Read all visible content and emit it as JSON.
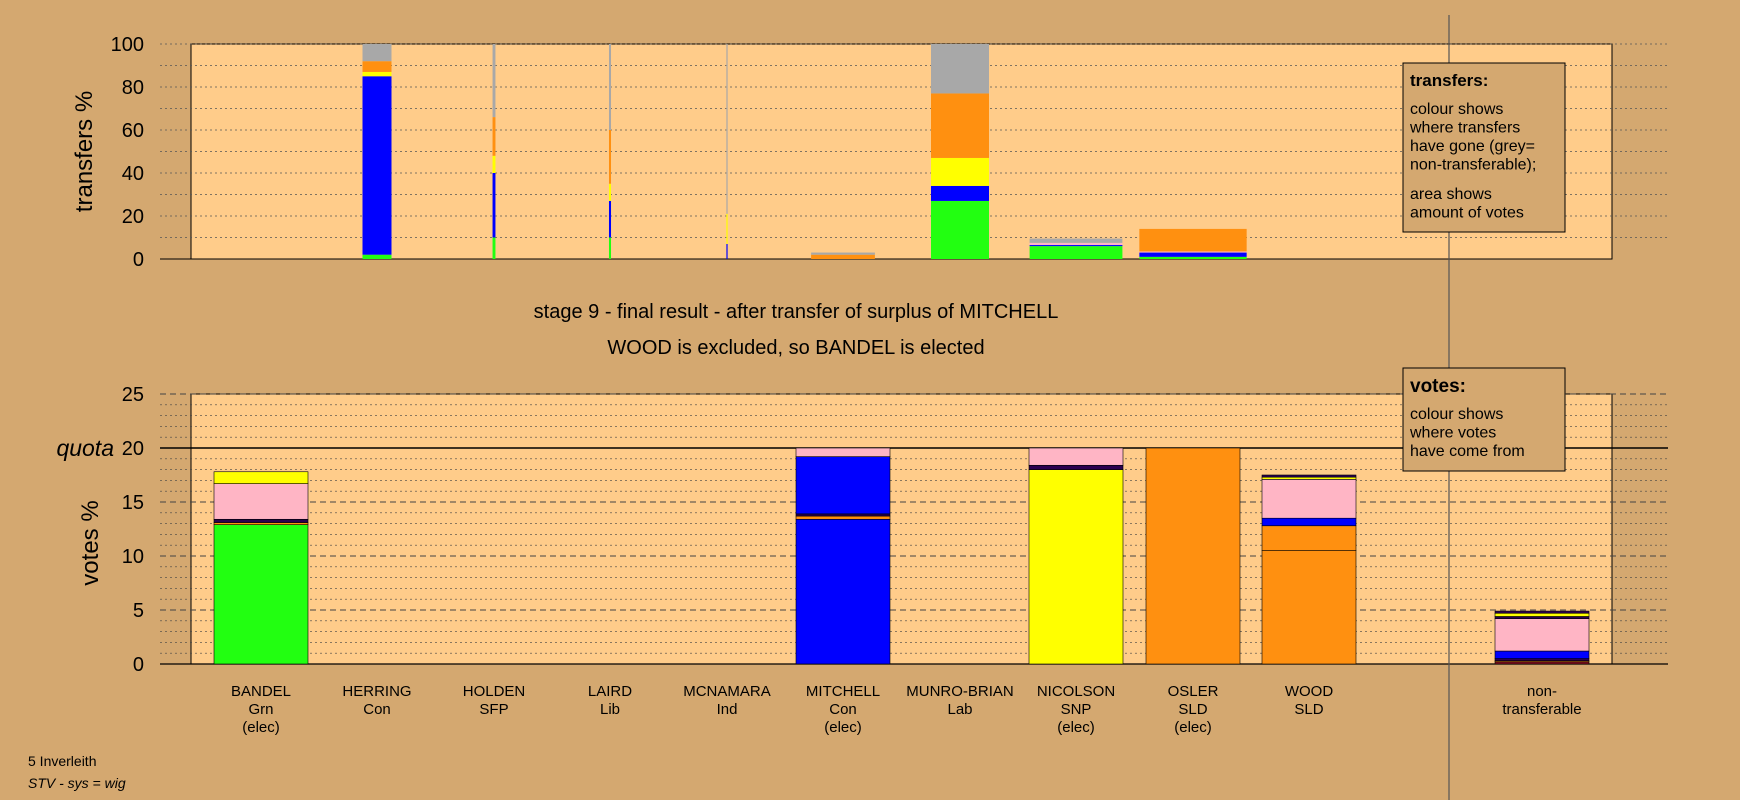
{
  "colors": {
    "Grn": "#22ff11",
    "Con": "#0000ff",
    "SFP": "#2a0050",
    "Lib": "#ff9010",
    "Ind": "#8a0f20",
    "Lab": "#ff0000",
    "SNP": "#ffff00",
    "SLD": "#ff9010",
    "other": "#ffb5c5",
    "non": "#a8a8a8",
    "plot_bg": "#ffcc8a",
    "page_bg": "#d4a870"
  },
  "chart_data": [
    {
      "type": "bar",
      "chart": "transfers",
      "ylabel": "transfers %",
      "ylim": [
        0,
        100
      ],
      "yticks": [
        0,
        20,
        40,
        60,
        80,
        100
      ],
      "grid": true,
      "note": "stacked transfer columns; column width shows amount of votes transferred",
      "columns": [
        {
          "candidate": "HERRING",
          "width": 1.0,
          "segments": [
            {
              "party": "Grn",
              "value": 2
            },
            {
              "party": "Con",
              "value": 83
            },
            {
              "party": "SNP",
              "value": 2
            },
            {
              "party": "SLD",
              "value": 5
            },
            {
              "party": "non",
              "value": 8
            }
          ]
        },
        {
          "candidate": "HOLDEN",
          "width": 0.1,
          "segments": [
            {
              "party": "Grn",
              "value": 10
            },
            {
              "party": "Con",
              "value": 30
            },
            {
              "party": "SNP",
              "value": 8
            },
            {
              "party": "SLD",
              "value": 18
            },
            {
              "party": "non",
              "value": 34
            }
          ]
        },
        {
          "candidate": "LAIRD",
          "width": 0.07,
          "segments": [
            {
              "party": "Grn",
              "value": 10
            },
            {
              "party": "Con",
              "value": 17
            },
            {
              "party": "SNP",
              "value": 8
            },
            {
              "party": "SLD",
              "value": 25
            },
            {
              "party": "non",
              "value": 40
            }
          ]
        },
        {
          "candidate": "MCNAMARA",
          "width": 0.04,
          "segments": [
            {
              "party": "Con",
              "value": 7
            },
            {
              "party": "SNP",
              "value": 14
            },
            {
              "party": "non",
              "value": 79
            }
          ]
        },
        {
          "candidate": "MITCHELL",
          "width": 2.2,
          "segments": [
            {
              "party": "SLD",
              "value": 2
            },
            {
              "party": "non",
              "value": 1
            }
          ]
        },
        {
          "candidate": "MUNRO-BRIAN",
          "width": 2.0,
          "segments": [
            {
              "party": "Grn",
              "value": 27
            },
            {
              "party": "Con",
              "value": 7
            },
            {
              "party": "SNP",
              "value": 13
            },
            {
              "party": "SLD",
              "value": 30
            },
            {
              "party": "non",
              "value": 23
            }
          ]
        },
        {
          "candidate": "NICOLSON",
          "width": 3.2,
          "segments": [
            {
              "party": "Grn",
              "value": 6
            },
            {
              "party": "Con",
              "value": 0.5
            },
            {
              "party": "other",
              "value": 1
            },
            {
              "party": "non",
              "value": 2
            }
          ]
        },
        {
          "candidate": "OSLER",
          "width": 3.7,
          "segments": [
            {
              "party": "Grn",
              "value": 1
            },
            {
              "party": "Con",
              "value": 2
            },
            {
              "party": "other",
              "value": 0.5
            },
            {
              "party": "SLD",
              "value": 10.5
            }
          ]
        }
      ]
    },
    {
      "type": "bar",
      "chart": "votes",
      "ylabel": "votes %",
      "ylim": [
        0,
        25
      ],
      "yticks": [
        0,
        5,
        10,
        15,
        20,
        25
      ],
      "quota": 20,
      "quota_label": "quota",
      "grid": true,
      "columns": [
        {
          "candidate": "BANDEL",
          "party": "Grn",
          "status": "(elec)",
          "segments": [
            {
              "party": "Grn",
              "value": 12.9
            },
            {
              "party": "Lib",
              "value": 0.2
            },
            {
              "party": "SFP",
              "value": 0.3
            },
            {
              "party": "other",
              "value": 3.3
            },
            {
              "party": "SNP",
              "value": 1.1
            }
          ]
        },
        {
          "candidate": "HERRING",
          "party": "Con",
          "status": "",
          "segments": []
        },
        {
          "candidate": "HOLDEN",
          "party": "SFP",
          "status": "",
          "segments": []
        },
        {
          "candidate": "LAIRD",
          "party": "Lib",
          "status": "",
          "segments": []
        },
        {
          "candidate": "MCNAMARA",
          "party": "Ind",
          "status": "",
          "segments": []
        },
        {
          "candidate": "MITCHELL",
          "party": "Con",
          "status": "(elec)",
          "segments": [
            {
              "party": "Con",
              "value": 13.4
            },
            {
              "party": "Lib",
              "value": 0.3
            },
            {
              "party": "SFP",
              "value": 0.2
            },
            {
              "party": "Con",
              "value": 5.3
            },
            {
              "party": "other",
              "value": 0.8
            }
          ]
        },
        {
          "candidate": "MUNRO-BRIAN",
          "party": "Lab",
          "status": "",
          "segments": []
        },
        {
          "candidate": "NICOLSON",
          "party": "SNP",
          "status": "(elec)",
          "segments": [
            {
              "party": "SNP",
              "value": 18.0
            },
            {
              "party": "SFP",
              "value": 0.4
            },
            {
              "party": "other",
              "value": 1.6
            }
          ]
        },
        {
          "candidate": "OSLER",
          "party": "SLD",
          "status": "(elec)",
          "segments": [
            {
              "party": "SLD",
              "value": 20.0
            }
          ]
        },
        {
          "candidate": "WOOD",
          "party": "SLD",
          "status": "",
          "segments": [
            {
              "party": "SLD",
              "value": 10.5
            },
            {
              "party": "SLD",
              "value": 2.3
            },
            {
              "party": "Con",
              "value": 0.7
            },
            {
              "party": "other",
              "value": 3.6
            },
            {
              "party": "SNP",
              "value": 0.2
            },
            {
              "party": "SFP",
              "value": 0.2
            }
          ]
        },
        {
          "candidate": "non-\ntransferable",
          "party": "",
          "status": "",
          "segments": [
            {
              "party": "Ind",
              "value": 0.2
            },
            {
              "party": "Lib",
              "value": 0.1
            },
            {
              "party": "SFP",
              "value": 0.2
            },
            {
              "party": "Con",
              "value": 0.7
            },
            {
              "party": "other",
              "value": 3.0
            },
            {
              "party": "SFP",
              "value": 0.2
            },
            {
              "party": "SNP",
              "value": 0.3
            },
            {
              "party": "SFP",
              "value": 0.2
            }
          ]
        }
      ]
    }
  ],
  "titles": {
    "line1": "stage 9 - final result - after transfer of surplus of MITCHELL",
    "line2": "WOOD is excluded, so BANDEL is elected"
  },
  "legend_transfers": {
    "title": "transfers:",
    "lines1": [
      "colour shows",
      "where transfers",
      "have gone (grey=",
      "non-transferable);"
    ],
    "lines2": [
      "area shows",
      "amount of votes"
    ]
  },
  "legend_votes": {
    "title": "votes:",
    "lines": [
      "colour shows",
      "where votes",
      "have come from"
    ]
  },
  "footer": {
    "constituency": "5 Inverleith",
    "system": "STV - sys = wig"
  }
}
